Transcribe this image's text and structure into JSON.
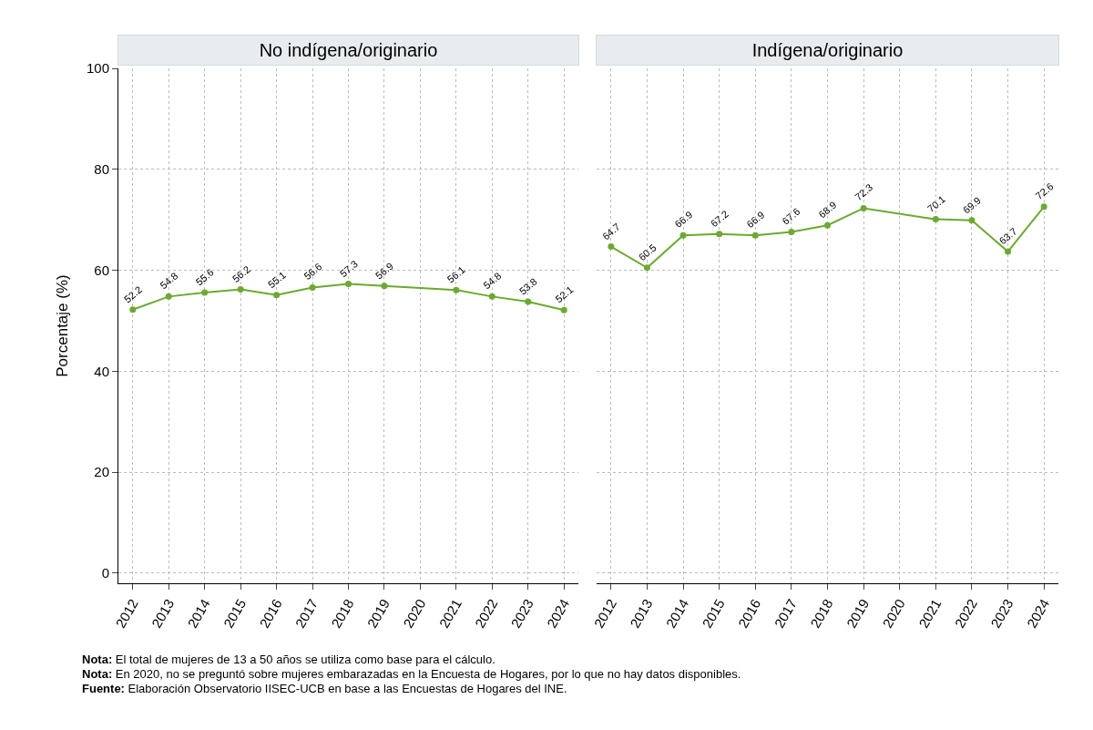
{
  "chart_data": [
    {
      "type": "line",
      "title": "No indígena/originario",
      "ylabel": "Porcentaje (%)",
      "x": [
        2012,
        2013,
        2014,
        2015,
        2016,
        2017,
        2018,
        2019,
        2021,
        2022,
        2023,
        2024
      ],
      "series": [
        {
          "color": "#6aab2e",
          "values": [
            52.2,
            54.8,
            55.6,
            56.2,
            55.1,
            56.6,
            57.3,
            56.9,
            56.1,
            54.8,
            53.8,
            52.1
          ]
        }
      ],
      "xlim": [
        2011.6,
        2024.4
      ],
      "xticks": [
        2012,
        2013,
        2014,
        2015,
        2016,
        2017,
        2018,
        2019,
        2020,
        2021,
        2022,
        2023,
        2024
      ],
      "ylim": [
        -2,
        100
      ],
      "yticks": [
        0,
        20,
        40,
        60,
        80,
        100
      ],
      "grid": true,
      "marker": "circle",
      "line_style": "solid",
      "data_labels": true,
      "annotations": [
        "Nota: El total de mujeres de 13 a 50 años se utiliza como base para el cálculo.",
        "Nota: En 2020, no se preguntó sobre mujeres embarazadas en la Encuesta de Hogares, por lo que no hay datos disponibles.",
        "Fuente: Elaboración Observatorio IISEC-UCB en base a las Encuestas de Hogares del INE."
      ]
    },
    {
      "type": "line",
      "title": "Indígena/originario",
      "x": [
        2012,
        2013,
        2014,
        2015,
        2016,
        2017,
        2018,
        2019,
        2021,
        2022,
        2023,
        2024
      ],
      "series": [
        {
          "color": "#6aab2e",
          "values": [
            64.7,
            60.5,
            66.9,
            67.2,
            66.9,
            67.6,
            68.9,
            72.3,
            70.1,
            69.9,
            63.7,
            72.6
          ]
        }
      ],
      "xlim": [
        2011.6,
        2024.4
      ],
      "xticks": [
        2012,
        2013,
        2014,
        2015,
        2016,
        2017,
        2018,
        2019,
        2020,
        2021,
        2022,
        2023,
        2024
      ],
      "ylim": [
        -2,
        100
      ],
      "yticks": [
        0,
        20,
        40,
        60,
        80,
        100
      ],
      "grid": true,
      "marker": "circle",
      "line_style": "solid",
      "data_labels": true,
      "tick_labels": "x"
    }
  ]
}
